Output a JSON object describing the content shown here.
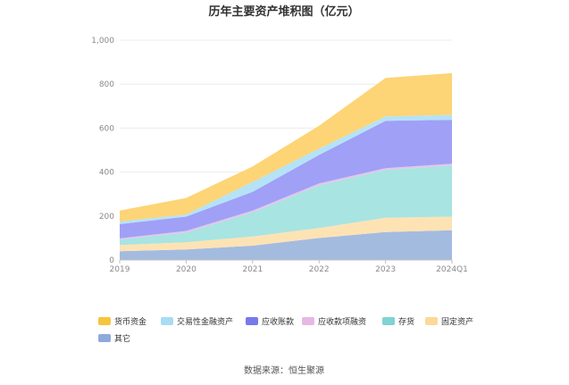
{
  "chart_data": {
    "type": "area",
    "stacked": true,
    "title": "历年主要资产堆积图（亿元）",
    "xlabel": "",
    "ylabel": "",
    "categories": [
      "2019",
      "2020",
      "2021",
      "2022",
      "2023",
      "2024Q1"
    ],
    "ylim": [
      0,
      1000
    ],
    "yticks": [
      0,
      200,
      400,
      600,
      800,
      1000
    ],
    "ytick_labels": [
      "0",
      "200",
      "400",
      "600",
      "800",
      "1,000"
    ],
    "grid": true,
    "legend_position": "bottom",
    "series": [
      {
        "name": "其它",
        "color": "#a4bbe0",
        "values": [
          40,
          48,
          65,
          100,
          127,
          135
        ]
      },
      {
        "name": "固定资产",
        "color": "#fde3b4",
        "values": [
          28,
          32,
          42,
          45,
          65,
          62
        ]
      },
      {
        "name": "存货",
        "color": "#a8e4e1",
        "values": [
          25,
          45,
          110,
          195,
          218,
          233
        ]
      },
      {
        "name": "应收款项融资",
        "color": "#e6c3ea",
        "values": [
          5,
          7,
          8,
          8,
          8,
          8
        ]
      },
      {
        "name": "应收账款",
        "color": "#a0a0f6",
        "values": [
          65,
          65,
          85,
          130,
          215,
          200
        ]
      },
      {
        "name": "交易性金融资产",
        "color": "#b4e3f7",
        "values": [
          12,
          10,
          45,
          28,
          20,
          22
        ]
      },
      {
        "name": "货币资金",
        "color": "#fdd476",
        "values": [
          50,
          75,
          70,
          105,
          175,
          190
        ]
      }
    ],
    "legend_order": [
      "货币资金",
      "交易性金融资产",
      "应收账款",
      "应收款项融资",
      "存货",
      "固定资产",
      "其它"
    ],
    "legend_colors": {
      "货币资金": "#f7c53c",
      "交易性金融资产": "#a7dcf2",
      "应收账款": "#7879ea",
      "应收款项融资": "#e8b7e4",
      "存货": "#7fd3d3",
      "固定资产": "#fcd89a",
      "其它": "#8eaadb"
    }
  },
  "source_text": "数据来源：恒生聚源"
}
